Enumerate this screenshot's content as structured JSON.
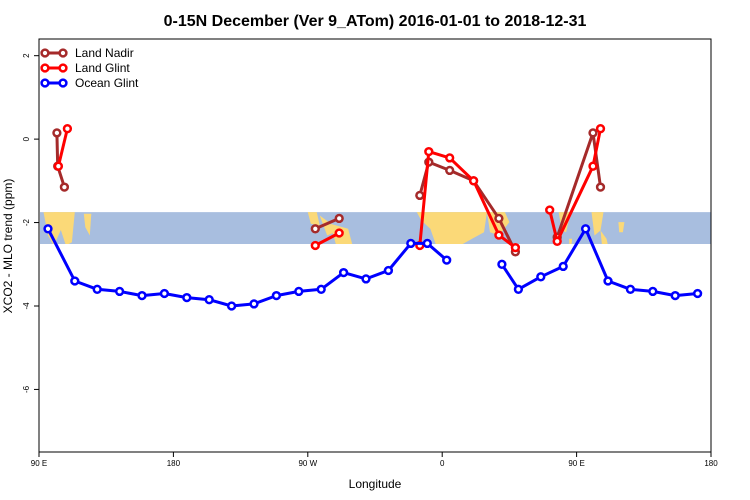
{
  "chart_data": {
    "type": "line",
    "title": "0-15N December (Ver 9_ATom)   2016-01-01 to 2018-12-31",
    "xlabel": "Longitude",
    "ylabel": "XCO2 - MLO trend (ppm)",
    "xlim": [
      90,
      540
    ],
    "ylim": [
      -7.5,
      2.4
    ],
    "x_ticks": [
      {
        "value": 90,
        "label": "90 E"
      },
      {
        "value": 180,
        "label": "180"
      },
      {
        "value": 270,
        "label": "90 W"
      },
      {
        "value": 360,
        "label": "0"
      },
      {
        "value": 450,
        "label": "90 E"
      },
      {
        "value": 540,
        "label": "180"
      }
    ],
    "y_ticks": [
      {
        "value": 2,
        "label": "2"
      },
      {
        "value": 0,
        "label": "0"
      },
      {
        "value": -2,
        "label": "-2"
      },
      {
        "value": -4,
        "label": "-4"
      },
      {
        "value": -6,
        "label": "-6"
      }
    ],
    "map_band": {
      "ymin": -2.55,
      "ymax": -1.75,
      "ocean_color": "#a8bedf",
      "land_color": "#fbd978"
    },
    "series": [
      {
        "name": "Land Nadir",
        "color": "#a52a2a",
        "segments": [
          [
            [
              102,
              0.15
            ],
            [
              102.5,
              -0.65
            ],
            [
              107,
              -1.15
            ]
          ],
          [
            [
              275,
              -2.15
            ],
            [
              291,
              -1.9
            ]
          ],
          [
            [
              345,
              -1.35
            ],
            [
              351,
              -0.55
            ],
            [
              365,
              -0.75
            ],
            [
              381,
              -1.0
            ],
            [
              398,
              -1.9
            ],
            [
              409,
              -2.7
            ]
          ],
          [
            [
              437,
              -2.35
            ],
            [
              461,
              0.15
            ],
            [
              466,
              -1.15
            ]
          ]
        ]
      },
      {
        "name": "Land Glint",
        "color": "#ff0000",
        "segments": [
          [
            [
              103,
              -0.65
            ],
            [
              109,
              0.25
            ]
          ],
          [
            [
              275,
              -2.55
            ],
            [
              291,
              -2.25
            ]
          ],
          [
            [
              345,
              -2.55
            ],
            [
              351,
              -0.3
            ],
            [
              365,
              -0.45
            ],
            [
              381,
              -1.0
            ],
            [
              398,
              -2.3
            ],
            [
              409,
              -2.6
            ]
          ],
          [
            [
              432,
              -1.7
            ],
            [
              437,
              -2.45
            ],
            [
              461,
              -0.65
            ],
            [
              466,
              0.25
            ]
          ]
        ]
      },
      {
        "name": "Ocean Glint",
        "color": "#0000ff",
        "segments": [
          [
            [
              96,
              -2.15
            ],
            [
              114,
              -3.4
            ],
            [
              129,
              -3.6
            ],
            [
              144,
              -3.65
            ],
            [
              159,
              -3.75
            ],
            [
              174,
              -3.7
            ],
            [
              189,
              -3.8
            ],
            [
              204,
              -3.85
            ],
            [
              219,
              -4.0
            ],
            [
              234,
              -3.95
            ],
            [
              249,
              -3.75
            ],
            [
              264,
              -3.65
            ],
            [
              279,
              -3.6
            ],
            [
              294,
              -3.2
            ],
            [
              309,
              -3.35
            ],
            [
              324,
              -3.15
            ],
            [
              339,
              -2.5
            ],
            [
              350,
              -2.5
            ],
            [
              363,
              -2.9
            ]
          ],
          [
            [
              400,
              -3.0
            ],
            [
              411,
              -3.6
            ],
            [
              426,
              -3.3
            ],
            [
              441,
              -3.05
            ],
            [
              456,
              -2.15
            ],
            [
              471,
              -3.4
            ],
            [
              486,
              -3.6
            ],
            [
              501,
              -3.65
            ],
            [
              516,
              -3.75
            ],
            [
              531,
              -3.7
            ]
          ]
        ]
      }
    ],
    "legend_position": "top-left"
  }
}
